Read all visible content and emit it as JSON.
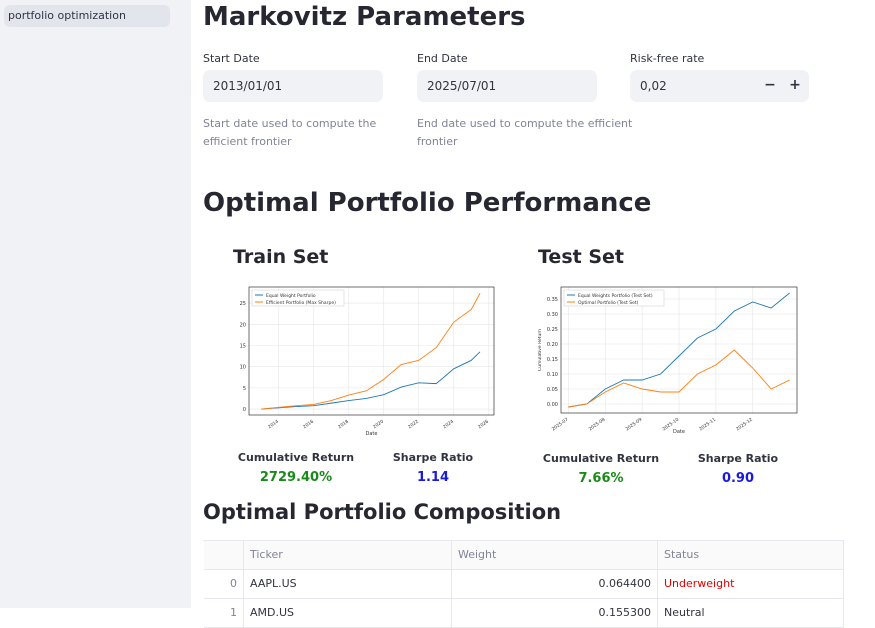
{
  "sidebar": {
    "items": [
      {
        "label": "portfolio optimization"
      }
    ]
  },
  "params": {
    "title": "Markovitz Parameters",
    "start": {
      "label": "Start Date",
      "value": "2013/01/01",
      "help": [
        "Start date used to compute the",
        "efficient frontier"
      ]
    },
    "end": {
      "label": "End Date",
      "value": "2025/07/01",
      "help": [
        "End date used to compute the efficient",
        "frontier"
      ]
    },
    "rf": {
      "label": "Risk-free rate",
      "value": "0,02",
      "minus": "−",
      "plus": "+"
    }
  },
  "perf": {
    "title": "Optimal Portfolio Performance",
    "train": {
      "title": "Train Set",
      "cum_label": "Cumulative Return",
      "cum_value": "2729.40%",
      "sharpe_label": "Sharpe Ratio",
      "sharpe_value": "1.14"
    },
    "test": {
      "title": "Test Set",
      "cum_label": "Cumulative Return",
      "cum_value": "7.66%",
      "sharpe_label": "Sharpe Ratio",
      "sharpe_value": "0.90"
    }
  },
  "composition": {
    "title": "Optimal Portfolio Composition",
    "columns": [
      "",
      "Ticker",
      "Weight",
      "Status"
    ],
    "rows": [
      {
        "idx": "0",
        "ticker": "AAPL.US",
        "weight": "0.064400",
        "status": "Underweight"
      },
      {
        "idx": "1",
        "ticker": "AMD.US",
        "weight": "0.155300",
        "status": "Neutral"
      }
    ]
  },
  "colors": {
    "blue": "#1f77b4",
    "orange": "#ff7f0e",
    "green": "#1a8a1a",
    "metric_blue": "#1a1adb",
    "red": "#e00000"
  },
  "chart_data": [
    {
      "type": "line",
      "x": [
        2013,
        2014,
        2015,
        2016,
        2017,
        2018,
        2019,
        2020,
        2021,
        2022,
        2023,
        2024,
        2025,
        2025.5
      ],
      "series": [
        {
          "name": "Equal Weight Portfolio",
          "values": [
            0,
            0.3,
            0.6,
            0.8,
            1.4,
            2.0,
            2.5,
            3.4,
            5.2,
            6.2,
            6.0,
            9.5,
            11.5,
            13.5
          ]
        },
        {
          "name": "Efficient Portfolio (Max Sharpe)",
          "values": [
            0,
            0.4,
            0.8,
            1.1,
            2.0,
            3.3,
            4.3,
            7.0,
            10.5,
            11.5,
            14.5,
            20.5,
            23.5,
            27.3
          ]
        }
      ],
      "xlabel": "Date",
      "ylabel": "Cumulative Return",
      "xticks": [
        "2014",
        "2016",
        "2018",
        "2020",
        "2022",
        "2024",
        "2026"
      ],
      "xtick_values": [
        2014,
        2016,
        2018,
        2020,
        2022,
        2024,
        2026
      ],
      "yticks": [
        "0",
        "5",
        "10",
        "15",
        "20",
        "25"
      ],
      "ytick_values": [
        0,
        5,
        10,
        15,
        20,
        25
      ],
      "xlim": [
        2012.3,
        2026.3
      ],
      "ylim": [
        -1.4,
        28.8
      ],
      "grid": true,
      "legend": "top-left"
    },
    {
      "type": "line",
      "x": [
        0,
        0.5,
        1,
        1.5,
        2,
        2.5,
        3,
        3.5,
        4,
        4.5,
        5,
        5.5,
        6
      ],
      "series": [
        {
          "name": "Equal Weights Portfolio (Test Set)",
          "values": [
            -0.01,
            0.0,
            0.05,
            0.08,
            0.08,
            0.1,
            0.16,
            0.22,
            0.25,
            0.31,
            0.34,
            0.32,
            0.37
          ]
        },
        {
          "name": "Optimal Portfolio (Test Set)",
          "values": [
            -0.01,
            0.0,
            0.04,
            0.07,
            0.05,
            0.04,
            0.04,
            0.1,
            0.13,
            0.18,
            0.12,
            0.05,
            0.08
          ]
        }
      ],
      "xlabel": "Date",
      "ylabel": "Cumulative Return",
      "xticks": [
        "2025-07",
        "2025-08",
        "2025-09",
        "2025-10",
        "2025-11",
        "2025-12"
      ],
      "xtick_values": [
        0,
        1,
        2,
        3,
        4,
        5
      ],
      "yticks": [
        "0.00",
        "0.05",
        "0.10",
        "0.15",
        "0.20",
        "0.25",
        "0.30",
        "0.35"
      ],
      "ytick_values": [
        0,
        0.05,
        0.1,
        0.15,
        0.2,
        0.25,
        0.3,
        0.35
      ],
      "xlim": [
        -0.2,
        6.2
      ],
      "ylim": [
        -0.03,
        0.39
      ],
      "grid": true,
      "legend": "top-left"
    }
  ]
}
